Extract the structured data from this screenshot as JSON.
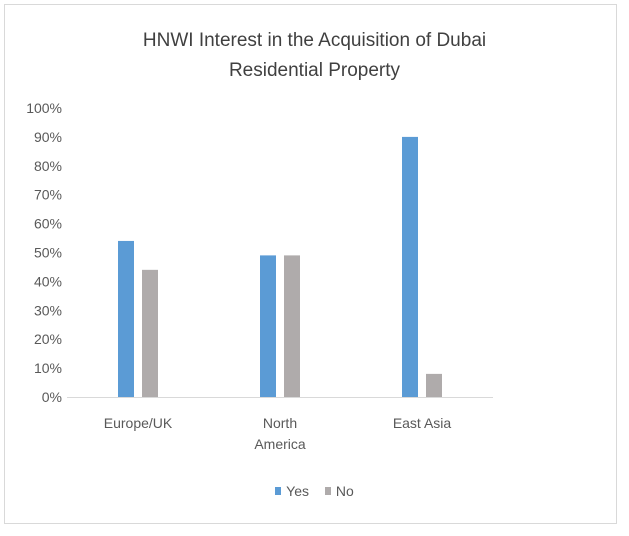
{
  "chart_data": {
    "type": "bar",
    "title": "HNWI Interest in the Acquisition of Dubai Residential Property",
    "title_lines": [
      "HNWI Interest in the Acquisition of Dubai",
      "Residential Property"
    ],
    "categories": [
      "Europe/UK",
      "North America",
      "East Asia"
    ],
    "category_lines": [
      [
        "Europe/UK"
      ],
      [
        "North",
        "America"
      ],
      [
        "East Asia"
      ]
    ],
    "series": [
      {
        "name": "Yes",
        "values": [
          54,
          49,
          90
        ],
        "color": "#5b9bd5"
      },
      {
        "name": "No",
        "values": [
          44,
          49,
          8
        ],
        "color": "#afabab"
      }
    ],
    "ylim": [
      0,
      100
    ],
    "yticks": [
      "0%",
      "10%",
      "20%",
      "30%",
      "40%",
      "50%",
      "60%",
      "70%",
      "80%",
      "90%",
      "100%"
    ],
    "xlabel": "",
    "ylabel": "",
    "grid": false,
    "legend": "bottom"
  }
}
